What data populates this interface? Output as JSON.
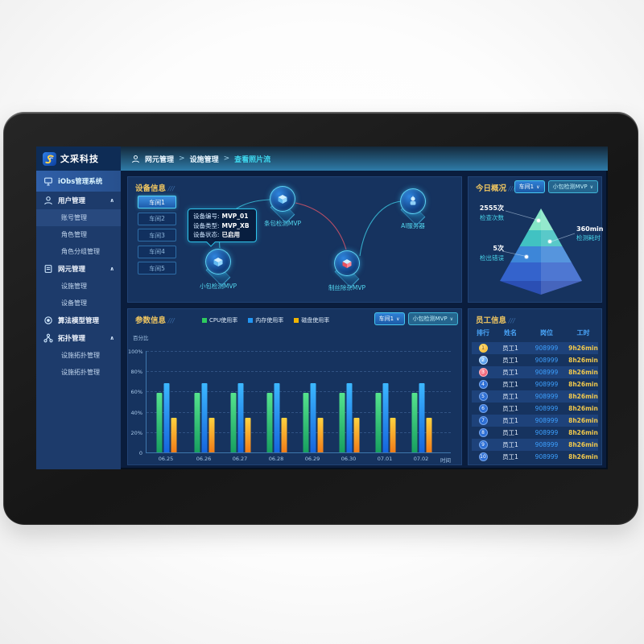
{
  "header": {
    "logo_text": "文采科技",
    "separator": ">",
    "breadcrumb": [
      "网元管理",
      "设施管理",
      "查看照片流"
    ]
  },
  "sidebar": {
    "items": [
      {
        "label": "iObs管理系统",
        "icon": "monitor-icon",
        "type": "top",
        "active": true
      },
      {
        "label": "用户管理",
        "icon": "user-icon",
        "type": "group",
        "expanded": true
      },
      {
        "label": "账号管理",
        "type": "sub",
        "highlight": true
      },
      {
        "label": "角色管理",
        "type": "sub"
      },
      {
        "label": "角色分组管理",
        "type": "sub"
      },
      {
        "label": "网元管理",
        "icon": "doc-icon",
        "type": "group",
        "expanded": true
      },
      {
        "label": "设施管理",
        "type": "sub"
      },
      {
        "label": "设备管理",
        "type": "sub"
      },
      {
        "label": "算法模型管理",
        "icon": "chip-icon",
        "type": "group"
      },
      {
        "label": "拓扑管理",
        "icon": "topology-icon",
        "type": "group",
        "expanded": true
      },
      {
        "label": "设施拓扑管理",
        "type": "sub"
      },
      {
        "label": "设施拓扑管理",
        "type": "sub"
      }
    ]
  },
  "device_info": {
    "title": "设备信息",
    "workshops": [
      {
        "label": "车间1",
        "active": true
      },
      {
        "label": "车间2",
        "active": false
      },
      {
        "label": "车间3",
        "active": false
      },
      {
        "label": "车间4",
        "active": false
      },
      {
        "label": "车间5",
        "active": false
      }
    ],
    "tooltip": {
      "lines": [
        {
          "label": "设备编号:",
          "value": "MVP_01"
        },
        {
          "label": "设备类型:",
          "value": "MVP_XB"
        },
        {
          "label": "设备状态:",
          "value": "已启用"
        }
      ]
    },
    "nodes": [
      {
        "label": "小包检测MVP",
        "icon": "cube"
      },
      {
        "label": "条包检测MVP",
        "icon": "cube"
      },
      {
        "label": "制丝除杂MVP",
        "icon": "cube-red"
      },
      {
        "label": "AI服务器",
        "icon": "robot"
      }
    ]
  },
  "today_overview": {
    "title": "今日概况",
    "filters": [
      "车间1",
      "小包检测MVP"
    ],
    "pyramid": {
      "colors": [
        "#85e6c6",
        "#41c2c2",
        "#3d86d8",
        "#3463cc",
        "#2b4fb4"
      ],
      "stats": [
        {
          "value": "2555次",
          "label": "检查次数"
        },
        {
          "value": "360min",
          "label": "检测耗时"
        },
        {
          "value": "5次",
          "label": "检出错误"
        }
      ]
    }
  },
  "parameters": {
    "title": "参数信息",
    "filters": [
      "车间1",
      "小包检测MVP"
    ],
    "chart_data": {
      "type": "bar",
      "categories": [
        "06.25",
        "06.26",
        "06.27",
        "06.28",
        "06.29",
        "06.30",
        "07.01",
        "07.02"
      ],
      "series": [
        {
          "name": "CPU使用率",
          "color": "#2ecc5e",
          "values": [
            59,
            59,
            59,
            59,
            59,
            59,
            59,
            59
          ]
        },
        {
          "name": "内存使用率",
          "color": "#2196f3",
          "values": [
            68,
            68,
            68,
            68,
            68,
            68,
            68,
            68
          ]
        },
        {
          "name": "磁盘使用率",
          "color": "#f0b400",
          "values": [
            34,
            34,
            34,
            34,
            34,
            34,
            34,
            34
          ]
        }
      ],
      "ylabel": "百分比",
      "xlabel": "时间",
      "ylim": [
        0,
        100
      ],
      "yticks": [
        "100%",
        "80%",
        "60%",
        "40%",
        "20%",
        "0"
      ],
      "grid": true,
      "legend_position": "top"
    }
  },
  "employees": {
    "title": "员工信息",
    "columns": [
      "排行",
      "姓名",
      "岗位",
      "工时"
    ],
    "rows": [
      {
        "rank": 1,
        "name": "员工1",
        "post": "908999",
        "hours": "9h26min"
      },
      {
        "rank": 2,
        "name": "员工1",
        "post": "908999",
        "hours": "8h26min"
      },
      {
        "rank": 3,
        "name": "员工1",
        "post": "908999",
        "hours": "8h26min"
      },
      {
        "rank": 4,
        "name": "员工1",
        "post": "908999",
        "hours": "8h26min"
      },
      {
        "rank": 5,
        "name": "员工1",
        "post": "908999",
        "hours": "8h26min"
      },
      {
        "rank": 6,
        "name": "员工1",
        "post": "908999",
        "hours": "8h26min"
      },
      {
        "rank": 7,
        "name": "员工1",
        "post": "908999",
        "hours": "8h26min"
      },
      {
        "rank": 8,
        "name": "员工1",
        "post": "908999",
        "hours": "8h26min"
      },
      {
        "rank": 9,
        "name": "员工1",
        "post": "908999",
        "hours": "8h26min"
      },
      {
        "rank": 10,
        "name": "员工1",
        "post": "908999",
        "hours": "8h26min"
      }
    ]
  }
}
